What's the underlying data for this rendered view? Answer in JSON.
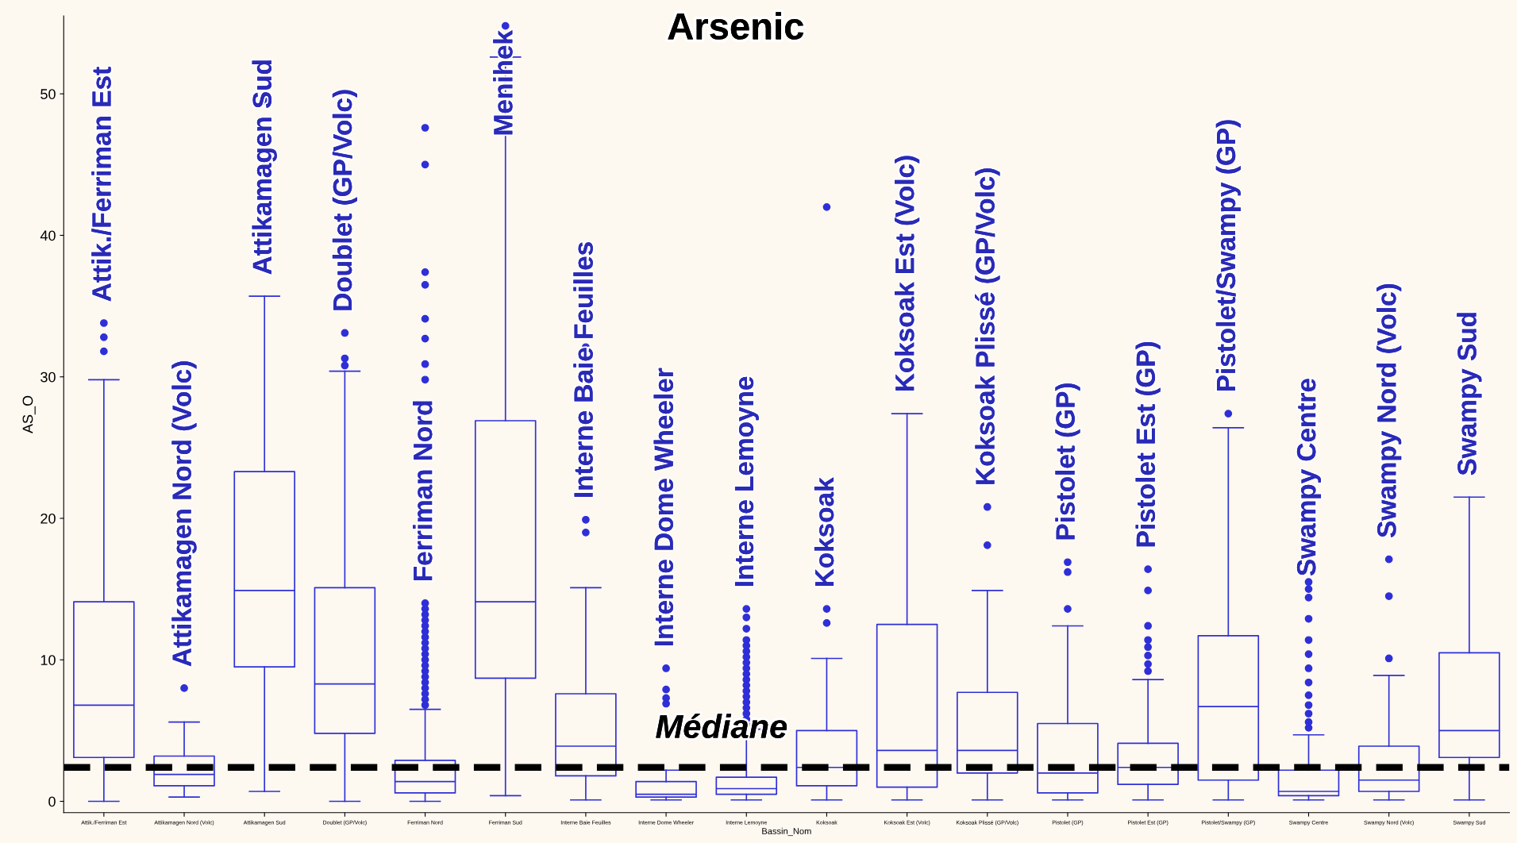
{
  "chart_data": {
    "type": "box",
    "title": "Arsenic",
    "xlabel": "Bassin_Nom",
    "ylabel": "AS_O",
    "categories": [
      "Attik./Ferriman Est",
      "Attikamagen Nord (Volc)",
      "Attikamagen Sud",
      "Doublet (GP/Volc)",
      "Ferriman Nord",
      "Ferriman Sud",
      "Interne Baie Feuilles",
      "Interne Dome Wheeler",
      "Interne Lemoyne",
      "Koksoak",
      "Koksoak Est (Volc)",
      "Koksoak Plissé (GP/Volc)",
      "Pistolet (GP)",
      "Pistolet Est (GP)",
      "Pistolet/Swampy (GP)",
      "Swampy Centre",
      "Swampy Nord (Volc)",
      "Swampy Sud"
    ],
    "series": [
      {
        "color": "#2f2fd8",
        "boxes": [
          {
            "low": 0.0,
            "q1": 3.1,
            "median": 6.8,
            "q3": 14.1,
            "high": 29.8,
            "outliers": [
              31.8,
              32.8,
              33.8
            ]
          },
          {
            "low": 0.3,
            "q1": 1.1,
            "median": 1.9,
            "q3": 3.2,
            "high": 5.6,
            "outliers": [
              8.0
            ]
          },
          {
            "low": 0.7,
            "q1": 9.5,
            "median": 14.9,
            "q3": 23.3,
            "high": 35.7,
            "outliers": [
              49.5
            ]
          },
          {
            "low": 0.0,
            "q1": 4.8,
            "median": 8.3,
            "q3": 15.1,
            "high": 30.4,
            "outliers": [
              30.8,
              31.3,
              33.1
            ]
          },
          {
            "low": 0.0,
            "q1": 0.6,
            "median": 1.4,
            "q3": 2.9,
            "high": 6.5,
            "outliers": [
              6.8,
              7.2,
              7.6,
              8.0,
              8.4,
              8.8,
              9.2,
              9.6,
              10.0,
              10.4,
              10.8,
              11.2,
              11.6,
              12.0,
              12.4,
              12.8,
              13.2,
              13.6,
              14.0,
              29.8,
              30.9,
              32.7,
              34.1,
              36.5,
              37.4,
              45.0,
              47.6
            ]
          },
          {
            "low": 0.4,
            "q1": 8.7,
            "median": 14.1,
            "q3": 26.9,
            "high": 52.6,
            "outliers": [
              54.8
            ]
          },
          {
            "low": 0.1,
            "q1": 1.8,
            "median": 3.9,
            "q3": 7.6,
            "high": 15.1,
            "outliers": [
              19.0,
              19.9,
              32.1
            ]
          },
          {
            "low": 0.1,
            "q1": 0.3,
            "median": 0.5,
            "q3": 1.4,
            "high": 2.2,
            "outliers": [
              6.9,
              7.3,
              7.9,
              9.4,
              13.6
            ]
          },
          {
            "low": 0.1,
            "q1": 0.5,
            "median": 0.9,
            "q3": 1.7,
            "high": 5.1,
            "outliers": [
              5.4,
              5.8,
              6.2,
              6.6,
              7.0,
              7.4,
              7.8,
              8.2,
              8.6,
              9.0,
              9.4,
              9.8,
              10.2,
              10.6,
              11.0,
              11.4,
              12.2,
              13.0,
              13.6
            ]
          },
          {
            "low": 0.1,
            "q1": 1.1,
            "median": 2.4,
            "q3": 5.0,
            "high": 10.1,
            "outliers": [
              12.6,
              13.6,
              42.0
            ]
          },
          {
            "low": 0.1,
            "q1": 1.0,
            "median": 3.6,
            "q3": 12.5,
            "high": 27.4
          },
          {
            "low": 0.1,
            "q1": 2.0,
            "median": 3.6,
            "q3": 7.7,
            "high": 14.9,
            "outliers": [
              18.1,
              20.8
            ]
          },
          {
            "low": 0.1,
            "q1": 0.6,
            "median": 2.0,
            "q3": 5.5,
            "high": 12.4,
            "outliers": [
              13.6,
              16.2,
              16.9
            ]
          },
          {
            "low": 0.1,
            "q1": 1.2,
            "median": 2.4,
            "q3": 4.1,
            "high": 8.6,
            "outliers": [
              9.2,
              9.7,
              10.3,
              10.9,
              11.4,
              12.4,
              14.9,
              16.4
            ]
          },
          {
            "low": 0.1,
            "q1": 1.5,
            "median": 6.7,
            "q3": 11.7,
            "high": 26.4,
            "outliers": [
              27.4
            ]
          },
          {
            "low": 0.1,
            "q1": 0.4,
            "median": 0.7,
            "q3": 2.2,
            "high": 4.7,
            "outliers": [
              5.2,
              5.6,
              6.2,
              6.8,
              7.5,
              8.4,
              9.4,
              10.4,
              11.4,
              12.9,
              14.4,
              15.0,
              15.5,
              18.5
            ]
          },
          {
            "low": 0.1,
            "q1": 0.7,
            "median": 1.5,
            "q3": 3.9,
            "high": 8.9,
            "outliers": [
              10.1,
              14.5,
              17.1
            ]
          },
          {
            "low": 0.1,
            "q1": 3.1,
            "median": 5.0,
            "q3": 10.5,
            "high": 21.5
          }
        ]
      }
    ],
    "ylim": [
      -0.8,
      55.5
    ],
    "yticks": [
      0,
      10,
      20,
      30,
      40,
      50
    ],
    "grid": false,
    "marker": "circle",
    "ref_lines": [
      {
        "axis": "y",
        "value": 2.4,
        "label": "Médiane",
        "color": "#000000",
        "line_style": "dashed"
      }
    ],
    "annotations": [
      "Attik./Ferriman Est",
      "Attikamagen Nord (Volc)",
      "Attikamagen Sud",
      "Doublet (GP/Volc)",
      "Ferriman Nord",
      "Menihek",
      "Interne Baie Feuilles",
      "Interne Dome Wheeler",
      "Interne Lemoyne",
      "Koksoak",
      "Koksoak Est (Volc)",
      "Koksoak Plissé (GP/Volc)",
      "Pistolet (GP)",
      "Pistolet Est (GP)",
      "Pistolet/Swampy (GP)",
      "Swampy Centre",
      "Swampy Nord (Volc)",
      "Swampy Sud"
    ]
  }
}
